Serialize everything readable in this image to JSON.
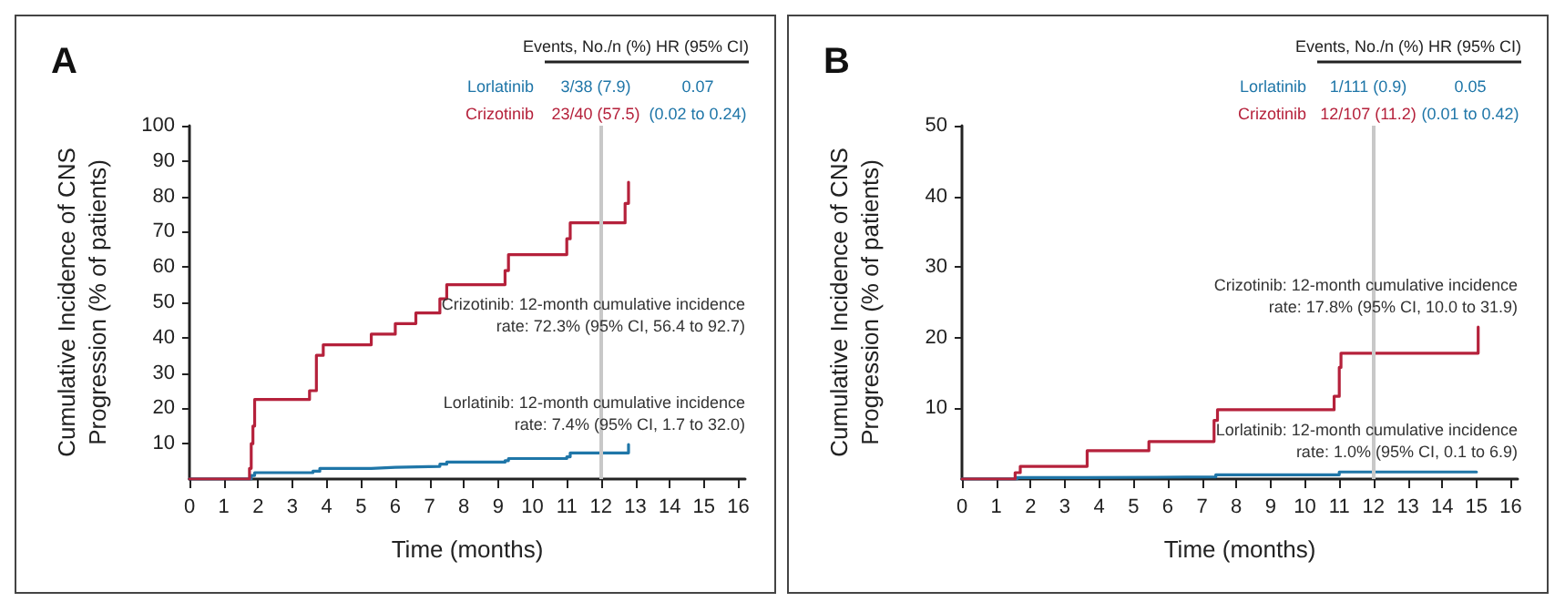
{
  "chart_data": [
    {
      "type": "step",
      "title": "A",
      "xlabel": "Time (months)",
      "ylabel": "Cumulative Incidence of CNS\nProgression (% of patients)",
      "legend": "top right",
      "legend_title": "Events, No./n (%) HR (95% CI)",
      "grid": false,
      "marker": "none",
      "line_style": "solid",
      "xlim": [
        0,
        16.2
      ],
      "xticks": [
        0,
        1,
        2,
        3,
        4,
        5,
        6,
        7,
        8,
        9,
        10,
        11,
        12,
        13,
        14,
        15,
        16
      ],
      "ylim": [
        0,
        100
      ],
      "yticks": [
        10,
        20,
        30,
        40,
        50,
        60,
        70,
        80,
        90,
        100
      ],
      "series": [
        {
          "name": "Lorlatinib",
          "color": "#1f76a8",
          "x": [
            0,
            1.7,
            1.8,
            1.9,
            3.6,
            3.8,
            5.3,
            6.0,
            7.3,
            7.5,
            9.2,
            9.3,
            11.0,
            11.1,
            12.7,
            12.8
          ],
          "values": [
            0,
            0,
            1,
            1.8,
            2.2,
            3,
            3.3,
            3.6,
            4.2,
            4.8,
            5.2,
            5.8,
            6.3,
            7.4,
            7.4,
            9.8
          ]
        },
        {
          "name": "Crizotinib",
          "color": "#b5213b",
          "x": [
            0,
            1.7,
            1.75,
            1.8,
            1.85,
            1.9,
            3.5,
            3.7,
            3.9,
            5.3,
            6.0,
            6.6,
            7.3,
            7.5,
            9.2,
            9.3,
            11.0,
            11.1,
            12.7,
            12.8
          ],
          "values": [
            0,
            0,
            3,
            10,
            15,
            22.5,
            25,
            35,
            38,
            41,
            44,
            47,
            51,
            55,
            59,
            63.5,
            68,
            72.5,
            78,
            84
          ]
        }
      ],
      "ref_lines": [
        {
          "axis": "x",
          "value": 12,
          "color": "#c8c8c8"
        }
      ],
      "annotations": [
        "3/38 (7.9)",
        "0.07",
        "23/40 (57.5)",
        "(0.02 to 0.24)",
        "Crizotinib: 12-month cumulative incidence\nrate: 72.3% (95% CI, 56.4 to 92.7)",
        "Lorlatinib: 12-month cumulative incidence\nrate: 7.4% (95% CI, 1.7 to 32.0)"
      ]
    },
    {
      "type": "step",
      "title": "B",
      "xlabel": "Time (months)",
      "ylabel": "Cumulative Incidence of CNS\nProgression (% of patients)",
      "legend": "top right",
      "legend_title": "Events, No./n (%) HR (95% CI)",
      "grid": false,
      "marker": "none",
      "line_style": "solid",
      "xlim": [
        0,
        16.2
      ],
      "xticks": [
        0,
        1,
        2,
        3,
        4,
        5,
        6,
        7,
        8,
        9,
        10,
        11,
        12,
        13,
        14,
        15,
        16
      ],
      "ylim": [
        0,
        50
      ],
      "yticks": [
        10,
        20,
        30,
        40,
        50
      ],
      "series": [
        {
          "name": "Lorlatinib",
          "color": "#1f76a8",
          "x": [
            0,
            1.6,
            3.6,
            7.4,
            11.0,
            15.0
          ],
          "values": [
            0,
            0.2,
            0.3,
            0.6,
            1.0,
            1.0
          ]
        },
        {
          "name": "Crizotinib",
          "color": "#b5213b",
          "x": [
            0,
            1.5,
            1.55,
            1.7,
            3.65,
            5.45,
            7.35,
            7.45,
            10.85,
            11.0,
            11.05,
            15.05
          ],
          "values": [
            0,
            0,
            0.9,
            1.8,
            4.0,
            5.3,
            8.3,
            9.8,
            11.7,
            15.8,
            17.8,
            21.5
          ]
        }
      ],
      "ref_lines": [
        {
          "axis": "x",
          "value": 12,
          "color": "#c8c8c8"
        }
      ],
      "annotations": [
        "1/111 (0.9)",
        "0.05",
        "12/107 (11.2)",
        "(0.01 to 0.42)",
        "Crizotinib: 12-month cumulative incidence\nrate: 17.8% (95% CI, 10.0 to 31.9)",
        "Lorlatinib: 12-month cumulative incidence\nrate: 1.0% (95% CI, 0.1 to 6.9)"
      ]
    }
  ]
}
